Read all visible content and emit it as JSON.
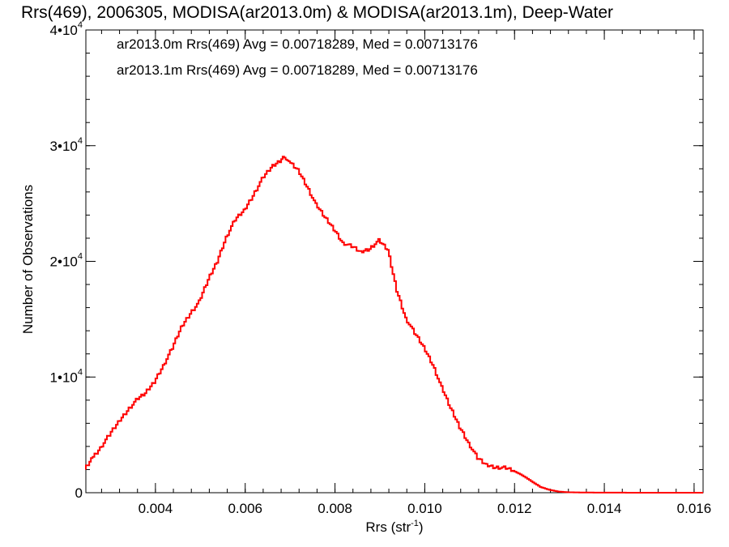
{
  "chart_data": {
    "type": "line",
    "title": "Rrs(469), 2006305, MODISA(ar2013.0m) & MODISA(ar2013.1m), Deep-Water",
    "xlabel": "Rrs (str",
    "xlabel_sup": "-1",
    "xlabel_end": ")",
    "ylabel": "Number of Observations",
    "xlim": [
      0.00245,
      0.0162
    ],
    "ylim": [
      0,
      40000
    ],
    "x_ticks": [
      {
        "value": 0.004,
        "label": "0.004"
      },
      {
        "value": 0.006,
        "label": "0.006"
      },
      {
        "value": 0.008,
        "label": "0.008"
      },
      {
        "value": 0.01,
        "label": "0.010"
      },
      {
        "value": 0.012,
        "label": "0.012"
      },
      {
        "value": 0.014,
        "label": "0.014"
      },
      {
        "value": 0.016,
        "label": "0.016"
      }
    ],
    "y_ticks": [
      {
        "value": 0,
        "base": "0",
        "exp": ""
      },
      {
        "value": 10000,
        "base": "1•10",
        "exp": "4"
      },
      {
        "value": 20000,
        "base": "2•10",
        "exp": "4"
      },
      {
        "value": 30000,
        "base": "3•10",
        "exp": "4"
      },
      {
        "value": 40000,
        "base": "4•10",
        "exp": "4"
      }
    ],
    "annotations": [
      {
        "text": "ar2013.0m Rrs(469) Avg = 0.00718289, Med = 0.00713176",
        "color": "#000000"
      },
      {
        "text": "ar2013.1m Rrs(469) Avg = 0.00718289, Med = 0.00713176",
        "color": "#ff0000"
      }
    ],
    "series": [
      {
        "color": "#ff0000",
        "points": [
          [
            0.00245,
            2000
          ],
          [
            0.0026,
            2900
          ],
          [
            0.0028,
            3900
          ],
          [
            0.003,
            5000
          ],
          [
            0.0032,
            6100
          ],
          [
            0.0034,
            7100
          ],
          [
            0.0036,
            8000
          ],
          [
            0.0038,
            8600
          ],
          [
            0.004,
            9600
          ],
          [
            0.0042,
            11000
          ],
          [
            0.0044,
            12500
          ],
          [
            0.0046,
            14300
          ],
          [
            0.0048,
            15500
          ],
          [
            0.005,
            16500
          ],
          [
            0.0052,
            18400
          ],
          [
            0.0054,
            20000
          ],
          [
            0.0056,
            22100
          ],
          [
            0.0058,
            23600
          ],
          [
            0.006,
            24400
          ],
          [
            0.0062,
            25700
          ],
          [
            0.0064,
            27100
          ],
          [
            0.0066,
            28100
          ],
          [
            0.0068,
            28700
          ],
          [
            0.0069,
            29100
          ],
          [
            0.007,
            28600
          ],
          [
            0.0072,
            27900
          ],
          [
            0.0074,
            26500
          ],
          [
            0.0076,
            24900
          ],
          [
            0.0078,
            23800
          ],
          [
            0.008,
            22800
          ],
          [
            0.0082,
            21600
          ],
          [
            0.0084,
            21300
          ],
          [
            0.0086,
            20800
          ],
          [
            0.0088,
            21100
          ],
          [
            0.009,
            21800
          ],
          [
            0.0092,
            21000
          ],
          [
            0.0094,
            17500
          ],
          [
            0.0096,
            15100
          ],
          [
            0.0098,
            13800
          ],
          [
            0.01,
            12600
          ],
          [
            0.0102,
            11100
          ],
          [
            0.0104,
            9100
          ],
          [
            0.0106,
            7300
          ],
          [
            0.0108,
            5700
          ],
          [
            0.011,
            4300
          ],
          [
            0.0112,
            3000
          ],
          [
            0.0114,
            2400
          ],
          [
            0.0116,
            2200
          ],
          [
            0.0118,
            2150
          ],
          [
            0.012,
            1900
          ],
          [
            0.0122,
            1500
          ],
          [
            0.0124,
            1000
          ],
          [
            0.0126,
            500
          ],
          [
            0.0128,
            250
          ],
          [
            0.013,
            100
          ],
          [
            0.0132,
            40
          ],
          [
            0.0136,
            15
          ],
          [
            0.014,
            5
          ],
          [
            0.015,
            2
          ],
          [
            0.0162,
            0
          ]
        ]
      }
    ]
  }
}
